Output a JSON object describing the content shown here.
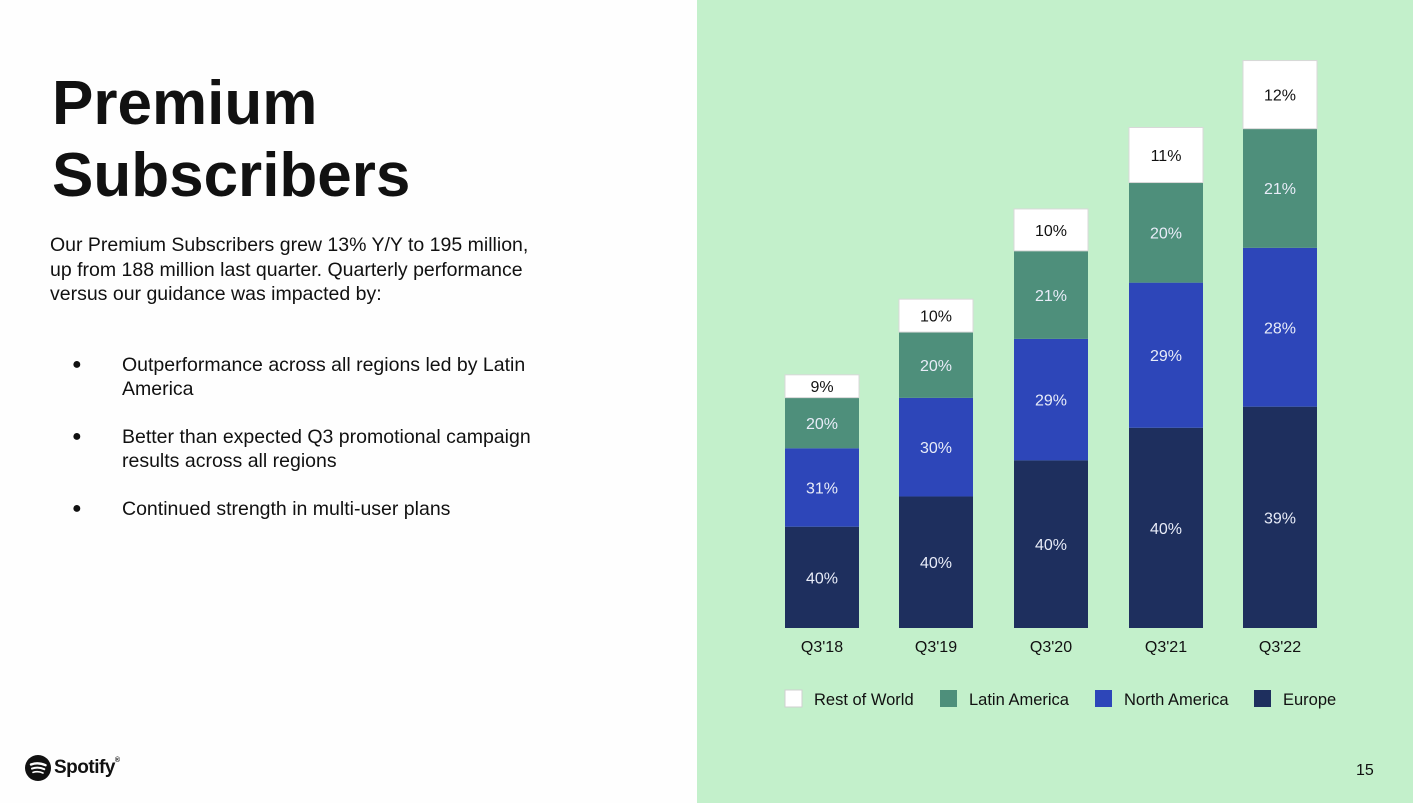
{
  "slide": {
    "title_line1": "Premium",
    "title_line2": "Subscribers",
    "intro": "Our Premium Subscribers grew 13% Y/Y to 195 million, up from 188 million last quarter. Quarterly performance versus our guidance was impacted by:",
    "bullets": [
      "Outperformance across all regions led by Latin America",
      "Better than expected Q3 promotional campaign results across all regions",
      "Continued strength in multi-user plans"
    ],
    "logo_text": "Spotify",
    "logo_tm": "®",
    "page_number": "15",
    "panel_bg": "#c3f0cb"
  },
  "chart_data": {
    "type": "bar",
    "stacked": true,
    "categories": [
      "Q3'18",
      "Q3'19",
      "Q3'20",
      "Q3'21",
      "Q3'22"
    ],
    "totals_millions": [
      87,
      113,
      144,
      172,
      195
    ],
    "series": [
      {
        "name": "Europe",
        "color": "#1e2f5e",
        "values": [
          40,
          40,
          40,
          40,
          39
        ],
        "labels": [
          "40%",
          "40%",
          "40%",
          "40%",
          "39%"
        ]
      },
      {
        "name": "North America",
        "color": "#2d46b9",
        "values": [
          31,
          30,
          29,
          29,
          28
        ],
        "labels": [
          "31%",
          "30%",
          "29%",
          "29%",
          "28%"
        ]
      },
      {
        "name": "Latin America",
        "color": "#4e8f7b",
        "values": [
          20,
          20,
          21,
          20,
          21
        ],
        "labels": [
          "20%",
          "20%",
          "21%",
          "20%",
          "21%"
        ]
      },
      {
        "name": "Rest of World",
        "color": "#ffffff",
        "values": [
          9,
          10,
          10,
          11,
          12
        ],
        "labels": [
          "9%",
          "10%",
          "10%",
          "11%",
          "12%"
        ]
      }
    ],
    "legend_order": [
      "Rest of World",
      "Latin America",
      "North America",
      "Europe"
    ],
    "legend_position": "bottom",
    "grid": false
  }
}
